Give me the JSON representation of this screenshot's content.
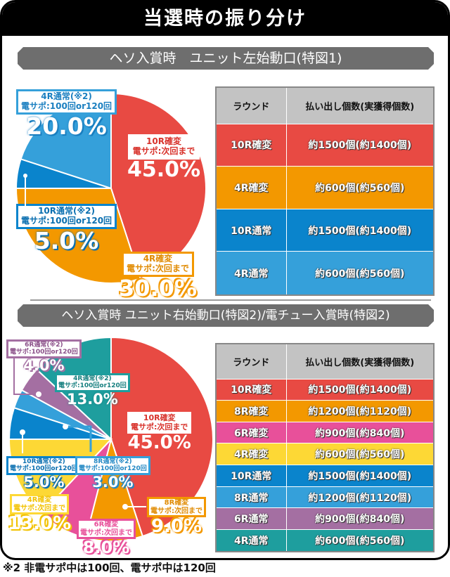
{
  "title": "当選時の振り分け",
  "sections": [
    {
      "heading": "ヘソ入賞時　ユニット左始動口(特図1)",
      "table": {
        "headers": [
          "ラウンド",
          "払い出し個数(実獲得個数)"
        ],
        "rows": [
          {
            "round": "10R確変",
            "payout": "約1500個(約1400個)",
            "color": "#e84a43"
          },
          {
            "round": "4R確変",
            "payout": "約600個(約560個)",
            "color": "#f39800"
          },
          {
            "round": "10R通常",
            "payout": "約1500個(約1400個)",
            "color": "#0a84cc"
          },
          {
            "round": "4R通常",
            "payout": "約600個(約560個)",
            "color": "#35a0da"
          }
        ]
      },
      "labels": [
        {
          "line1": "10R確変",
          "line2": "電サポ:次回まで",
          "pct": "45.0%",
          "color": "#e84a43"
        },
        {
          "line1": "4R確変",
          "line2": "電サポ:次回まで",
          "pct": "30.0%",
          "color": "#f39800"
        },
        {
          "line1": "10R通常(※2)",
          "line2": "電サポ:100回or120回",
          "pct": "5.0%",
          "color": "#0a84cc"
        },
        {
          "line1": "4R通常(※2)",
          "line2": "電サポ:100回or120回",
          "pct": "20.0%",
          "color": "#35a0da"
        }
      ]
    },
    {
      "heading": "ヘソ入賞時 ユニット右始動口(特図2)/電チュー入賞時(特図2)",
      "table": {
        "headers": [
          "ラウンド",
          "払い出し個数(実獲得個数)"
        ],
        "rows": [
          {
            "round": "10R確変",
            "payout": "約1500個(約1400個)",
            "color": "#e84a43"
          },
          {
            "round": "8R確変",
            "payout": "約1200個(約1120個)",
            "color": "#f39800"
          },
          {
            "round": "6R確変",
            "payout": "約900個(約840個)",
            "color": "#e8509a"
          },
          {
            "round": "4R確変",
            "payout": "約600個(約560個)",
            "color": "#fdd835"
          },
          {
            "round": "10R通常",
            "payout": "約1500個(約1400個)",
            "color": "#0a84cc"
          },
          {
            "round": "8R通常",
            "payout": "約1200個(約1120個)",
            "color": "#35a0da"
          },
          {
            "round": "6R通常",
            "payout": "約900個(約840個)",
            "color": "#a46fa2"
          },
          {
            "round": "4R通常",
            "payout": "約600個(約560個)",
            "color": "#1e9e9e"
          }
        ]
      },
      "labels": [
        {
          "line1": "10R確変",
          "line2": "電サポ:次回まで",
          "pct": "45.0%",
          "color": "#e84a43"
        },
        {
          "line1": "8R確変",
          "line2": "電サポ:次回まで",
          "pct": "9.0%",
          "color": "#f39800"
        },
        {
          "line1": "6R確変",
          "line2": "電サポ:次回まで",
          "pct": "8.0%",
          "color": "#e8509a"
        },
        {
          "line1": "4R確変",
          "line2": "電サポ:次回まで",
          "pct": "13.0%",
          "color": "#fdd835"
        },
        {
          "line1": "10R通常(※2)",
          "line2": "電サポ:100回or120回",
          "pct": "5.0%",
          "color": "#0a84cc"
        },
        {
          "line1": "8R通常(※2)",
          "line2": "電サポ:100回or120回",
          "pct": "3.0%",
          "color": "#35a0da"
        },
        {
          "line1": "6R通常(※2)",
          "line2": "電サポ:100回or120回",
          "pct": "4.0%",
          "color": "#a46fa2"
        },
        {
          "line1": "4R通常(※2)",
          "line2": "電サポ:100回or120回",
          "pct": "13.0%",
          "color": "#1e9e9e"
        }
      ]
    }
  ],
  "footnote": "※2 非電サポ中は100回、電サポ中は120回",
  "chart_data": [
    {
      "type": "pie",
      "title": "ヘソ入賞時　ユニット左始動口(特図1)",
      "categories": [
        "10R確変",
        "4R確変",
        "10R通常",
        "4R通常"
      ],
      "values": [
        45.0,
        30.0,
        5.0,
        20.0
      ],
      "colors": [
        "#e84a43",
        "#f39800",
        "#0a84cc",
        "#35a0da"
      ],
      "annotations": [
        "電サポ:次回まで",
        "電サポ:次回まで",
        "電サポ:100回or120回",
        "電サポ:100回or120回"
      ]
    },
    {
      "type": "pie",
      "title": "ヘソ入賞時 ユニット右始動口(特図2)/電チュー入賞時(特図2)",
      "categories": [
        "10R確変",
        "8R確変",
        "6R確変",
        "4R確変",
        "10R通常",
        "8R通常",
        "6R通常",
        "4R通常"
      ],
      "values": [
        45.0,
        9.0,
        8.0,
        13.0,
        5.0,
        3.0,
        4.0,
        13.0
      ],
      "colors": [
        "#e84a43",
        "#f39800",
        "#e8509a",
        "#fdd835",
        "#0a84cc",
        "#35a0da",
        "#a46fa2",
        "#1e9e9e"
      ],
      "annotations": [
        "電サポ:次回まで",
        "電サポ:次回まで",
        "電サポ:次回まで",
        "電サポ:次回まで",
        "電サポ:100回or120回",
        "電サポ:100回or120回",
        "電サポ:100回or120回",
        "電サポ:100回or120回"
      ]
    }
  ]
}
